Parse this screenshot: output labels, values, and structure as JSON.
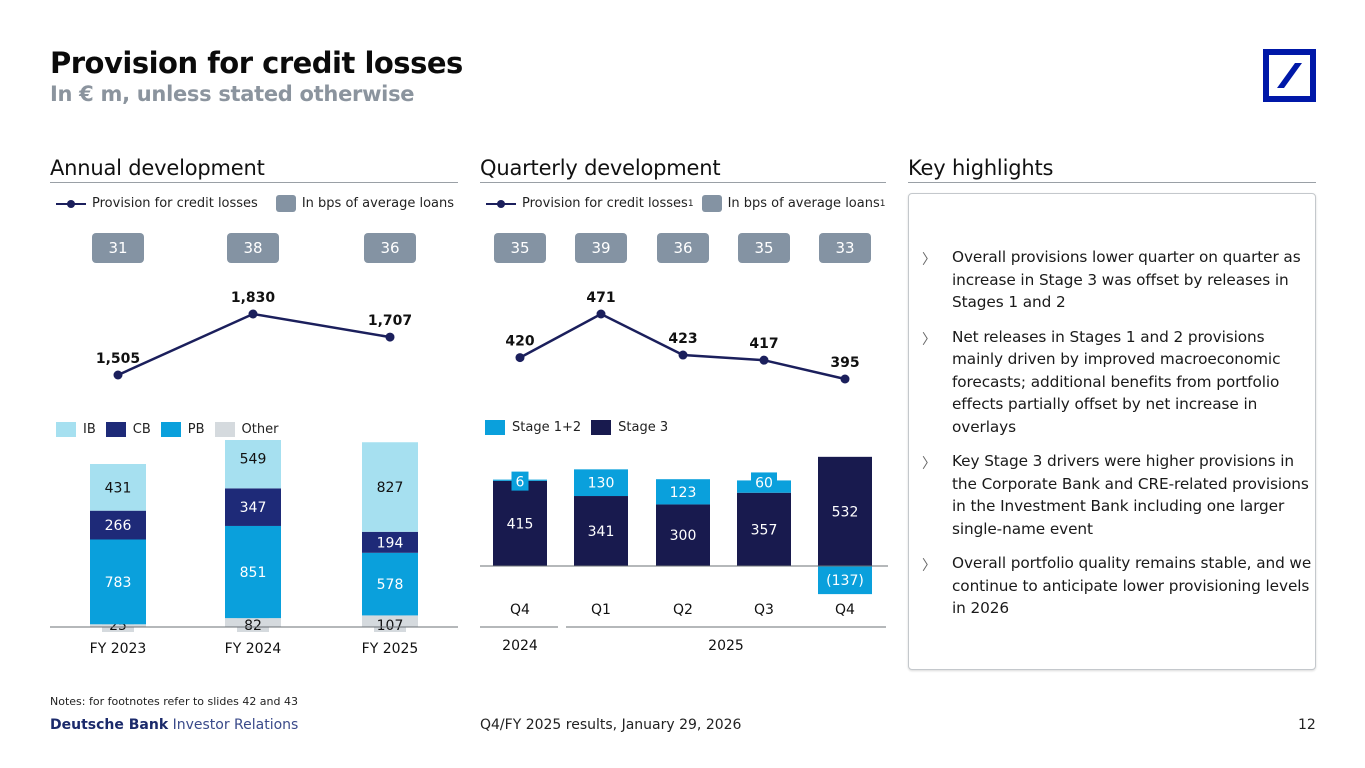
{
  "header": {
    "title": "Provision for credit losses",
    "subtitle": "In € m, unless stated otherwise",
    "logo": "deutsche-bank-logo"
  },
  "colors": {
    "navy": "#1b1f5c",
    "ib": "#a6e0f0",
    "cb": "#1e2a78",
    "pb": "#0aa0dc",
    "other": "#d5dade",
    "stage12": "#0aa0dc",
    "stage3": "#181a4e",
    "bps_badge": "#8493a3",
    "brand_blue": "#0018a8"
  },
  "annual": {
    "section_title": "Annual development",
    "legend_line": "Provision for credit losses",
    "legend_box": "In bps of average loans",
    "segment_legend": [
      "IB",
      "CB",
      "PB",
      "Other"
    ]
  },
  "quarterly": {
    "section_title": "Quarterly development",
    "legend_line": "Provision for credit losses",
    "legend_line_sup": "1",
    "legend_box": "In bps of average loans",
    "legend_box_sup": "1",
    "segment_legend": [
      "Stage 1+2",
      "Stage 3"
    ],
    "year_groups": [
      {
        "label": "2024",
        "span": 1
      },
      {
        "label": "2025",
        "span": 4
      }
    ]
  },
  "highlights": {
    "section_title": "Key highlights",
    "bullet_icon": "chevron-right-icon",
    "items": [
      "Overall provisions lower quarter on quarter as increase in Stage 3 was offset by releases in Stages 1 and 2",
      "Net releases in Stages 1 and 2 provisions mainly driven by improved macroeconomic forecasts; additional benefits from portfolio effects partially offset by net increase in overlays",
      "Key Stage 3 drivers were higher provisions in the Corporate Bank and CRE-related provisions in the Investment Bank including one larger single-name event",
      "Overall portfolio quality remains stable, and we continue to anticipate lower provisioning levels in 2026"
    ]
  },
  "footer": {
    "notes": "Notes: for footnotes refer to slides 42 and 43",
    "brand_bold": "Deutsche Bank",
    "brand_rest": "Investor Relations",
    "center": "Q4/FY 2025 results, January 29, 2026",
    "page": "12"
  },
  "chart_data": [
    {
      "type": "bar",
      "stacked": true,
      "title": "Annual development",
      "categories": [
        "FY 2023",
        "FY 2024",
        "FY 2025"
      ],
      "series": [
        {
          "name": "Other",
          "values": [
            25,
            82,
            107
          ]
        },
        {
          "name": "PB",
          "values": [
            783,
            851,
            578
          ]
        },
        {
          "name": "CB",
          "values": [
            266,
            347,
            194
          ]
        },
        {
          "name": "IB",
          "values": [
            431,
            549,
            827
          ]
        }
      ],
      "line": {
        "name": "Provision for credit losses",
        "values": [
          1505,
          1830,
          1707
        ],
        "labels": [
          "1,505",
          "1,830",
          "1,707"
        ]
      },
      "bps": {
        "name": "In bps of average loans",
        "values": [
          31,
          38,
          36
        ]
      },
      "legend": "top-left"
    },
    {
      "type": "bar",
      "stacked": true,
      "title": "Quarterly development",
      "categories": [
        "Q4",
        "Q1",
        "Q2",
        "Q3",
        "Q4"
      ],
      "year_labels": [
        "2024",
        "2025"
      ],
      "series": [
        {
          "name": "Stage 3",
          "values": [
            415,
            341,
            300,
            357,
            532
          ]
        },
        {
          "name": "Stage 1+2",
          "values": [
            6,
            130,
            123,
            60,
            -137
          ],
          "labels": [
            "6",
            "130",
            "123",
            "60",
            "(137)"
          ]
        }
      ],
      "line": {
        "name": "Provision for credit losses",
        "values": [
          420,
          471,
          423,
          417,
          395
        ]
      },
      "bps": {
        "name": "In bps of average loans",
        "values": [
          35,
          39,
          36,
          35,
          33
        ]
      },
      "legend": "top-left"
    }
  ]
}
